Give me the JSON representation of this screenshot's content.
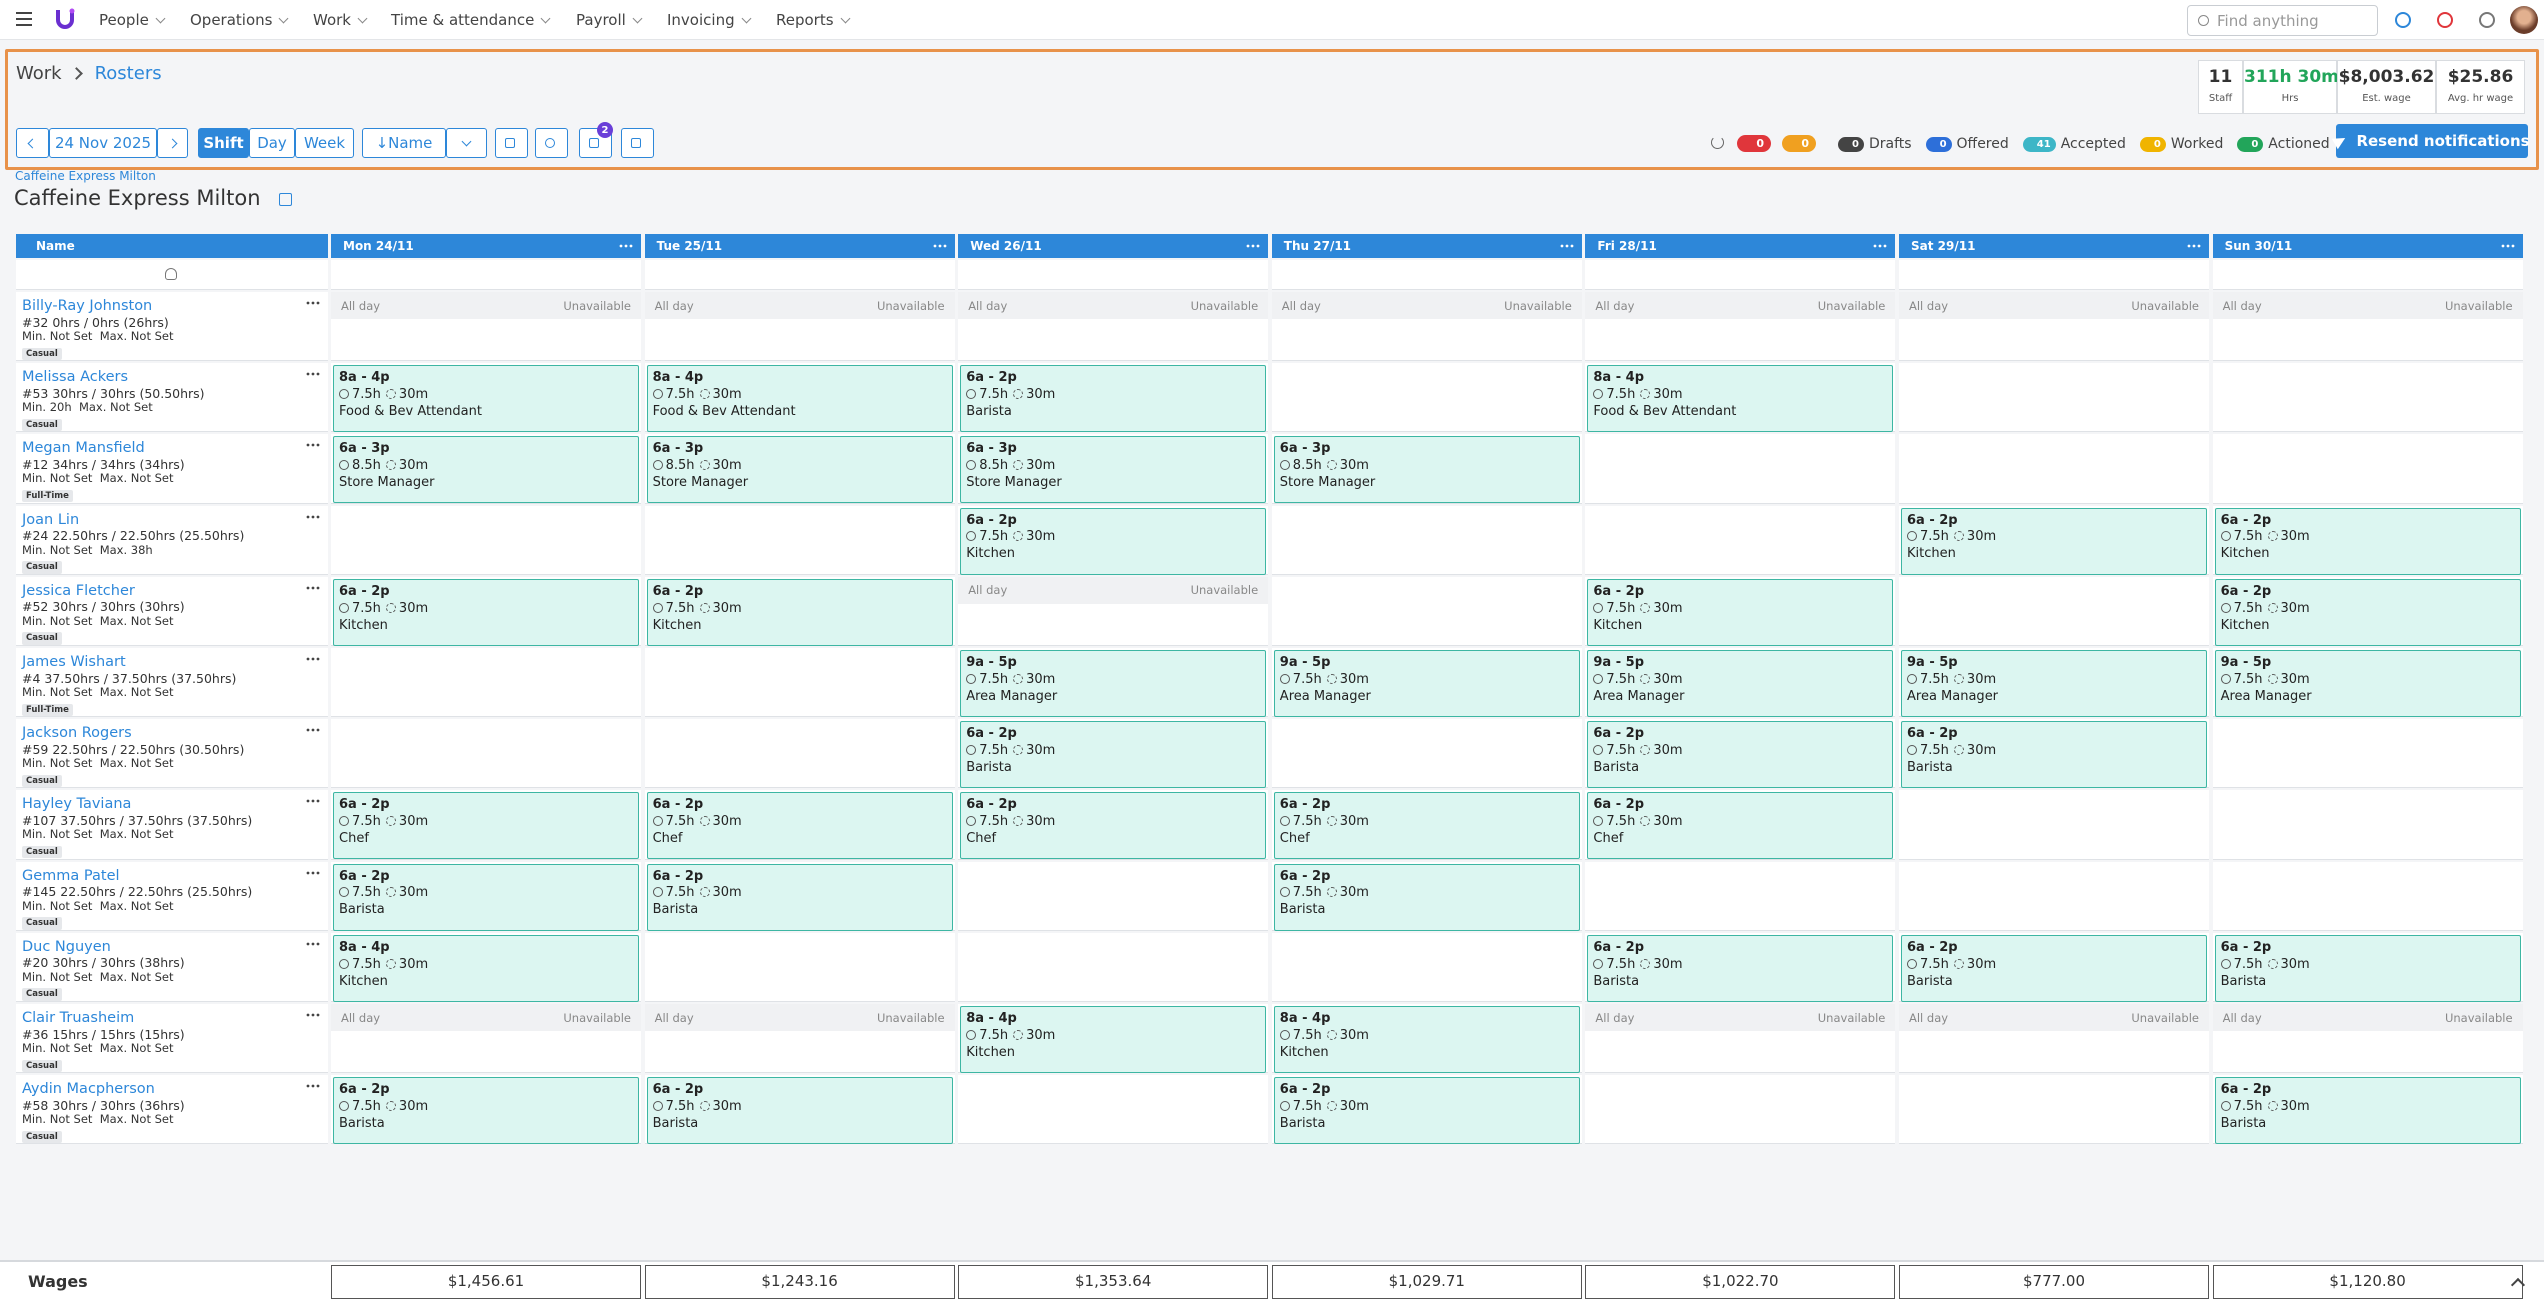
{
  "nav": {
    "items": [
      "People",
      "Operations",
      "Work",
      "Time & attendance",
      "Payroll",
      "Invoicing",
      "Reports"
    ],
    "search_placeholder": "Find anything"
  },
  "header": {
    "breadcrumb": [
      "Work",
      "Rosters"
    ],
    "stats": [
      {
        "value": "11",
        "label": "Staff"
      },
      {
        "value": "311h 30m",
        "label": "Hrs"
      },
      {
        "value": "$8,003.62",
        "label": "Est. wage"
      },
      {
        "value": "$25.86",
        "label": "Avg. hr wage"
      }
    ]
  },
  "toolbar": {
    "date": "24 Nov 2025",
    "views": [
      "Shift",
      "Day",
      "Week"
    ],
    "sort": "↓Name",
    "messages_badge": "2",
    "alerts": [
      "0",
      "0"
    ],
    "statuses": [
      {
        "count": "0",
        "label": "Drafts"
      },
      {
        "count": "0",
        "label": "Offered"
      },
      {
        "count": "41",
        "label": "Accepted"
      },
      {
        "count": "0",
        "label": "Worked"
      },
      {
        "count": "0",
        "label": "Actioned"
      }
    ],
    "resend": "Resend notifications"
  },
  "location": {
    "parent": "Caffeine Express Milton",
    "title": "Caffeine Express Milton"
  },
  "grid": {
    "name_header": "Name",
    "days": [
      "Mon 24/11",
      "Tue 25/11",
      "Wed 26/11",
      "Thu 27/11",
      "Fri 28/11",
      "Sat 29/11",
      "Sun 30/11"
    ],
    "rows": [
      {
        "name": "Billy-Ray Johnston",
        "summary": "#32 0hrs / 0hrs (26hrs)",
        "limits": "Min. Not Set  Max. Not Set",
        "type": "Casual",
        "cells": [
          {
            "left": "All day",
            "right": "Unavailable"
          },
          {
            "left": "All day",
            "right": "Unavailable"
          },
          {
            "left": "All day",
            "right": "Unavailable"
          },
          {
            "left": "All day",
            "right": "Unavailable"
          },
          {
            "left": "All day",
            "right": "Unavailable"
          },
          {
            "left": "All day",
            "right": "Unavailable"
          },
          {
            "left": "All day",
            "right": "Unavailable"
          }
        ]
      },
      {
        "name": "Melissa Ackers",
        "summary": "#53 30hrs / 30hrs (50.50hrs)",
        "limits": "Min. 20h  Max. Not Set",
        "type": "Casual",
        "cells": [
          {
            "time": "8a - 4p",
            "hours": "7.5h",
            "break": "30m",
            "role": "Food & Bev Attendant"
          },
          {
            "time": "8a - 4p",
            "hours": "7.5h",
            "break": "30m",
            "role": "Food & Bev Attendant"
          },
          {
            "time": "6a - 2p",
            "hours": "7.5h",
            "break": "30m",
            "role": "Barista"
          },
          null,
          {
            "time": "8a - 4p",
            "hours": "7.5h",
            "break": "30m",
            "role": "Food & Bev Attendant"
          },
          null,
          null
        ]
      },
      {
        "name": "Megan Mansfield",
        "summary": "#12 34hrs / 34hrs (34hrs)",
        "limits": "Min. Not Set  Max. Not Set",
        "type": "Full-Time",
        "cells": [
          {
            "time": "6a - 3p",
            "hours": "8.5h",
            "break": "30m",
            "role": "Store Manager"
          },
          {
            "time": "6a - 3p",
            "hours": "8.5h",
            "break": "30m",
            "role": "Store Manager"
          },
          {
            "time": "6a - 3p",
            "hours": "8.5h",
            "break": "30m",
            "role": "Store Manager"
          },
          {
            "time": "6a - 3p",
            "hours": "8.5h",
            "break": "30m",
            "role": "Store Manager"
          },
          null,
          null,
          null
        ]
      },
      {
        "name": "Joan Lin",
        "summary": "#24 22.50hrs / 22.50hrs (25.50hrs)",
        "limits": "Min. Not Set  Max. 38h",
        "type": "Casual",
        "cells": [
          null,
          null,
          {
            "time": "6a - 2p",
            "hours": "7.5h",
            "break": "30m",
            "role": "Kitchen"
          },
          null,
          null,
          {
            "time": "6a - 2p",
            "hours": "7.5h",
            "break": "30m",
            "role": "Kitchen"
          },
          {
            "time": "6a - 2p",
            "hours": "7.5h",
            "break": "30m",
            "role": "Kitchen"
          }
        ]
      },
      {
        "name": "Jessica Fletcher",
        "summary": "#52 30hrs / 30hrs (30hrs)",
        "limits": "Min. Not Set  Max. Not Set",
        "type": "Casual",
        "cells": [
          {
            "time": "6a - 2p",
            "hours": "7.5h",
            "break": "30m",
            "role": "Kitchen"
          },
          {
            "time": "6a - 2p",
            "hours": "7.5h",
            "break": "30m",
            "role": "Kitchen"
          },
          {
            "left": "All day",
            "right": "Unavailable"
          },
          null,
          {
            "time": "6a - 2p",
            "hours": "7.5h",
            "break": "30m",
            "role": "Kitchen"
          },
          null,
          {
            "time": "6a - 2p",
            "hours": "7.5h",
            "break": "30m",
            "role": "Kitchen"
          }
        ]
      },
      {
        "name": "James Wishart",
        "summary": "#4 37.50hrs / 37.50hrs (37.50hrs)",
        "limits": "Min. Not Set  Max. Not Set",
        "type": "Full-Time",
        "cells": [
          null,
          null,
          {
            "time": "9a - 5p",
            "hours": "7.5h",
            "break": "30m",
            "role": "Area Manager"
          },
          {
            "time": "9a - 5p",
            "hours": "7.5h",
            "break": "30m",
            "role": "Area Manager"
          },
          {
            "time": "9a - 5p",
            "hours": "7.5h",
            "break": "30m",
            "role": "Area Manager"
          },
          {
            "time": "9a - 5p",
            "hours": "7.5h",
            "break": "30m",
            "role": "Area Manager"
          },
          {
            "time": "9a - 5p",
            "hours": "7.5h",
            "break": "30m",
            "role": "Area Manager"
          }
        ]
      },
      {
        "name": "Jackson Rogers",
        "summary": "#59 22.50hrs / 22.50hrs (30.50hrs)",
        "limits": "Min. Not Set  Max. Not Set",
        "type": "Casual",
        "cells": [
          null,
          null,
          {
            "time": "6a - 2p",
            "hours": "7.5h",
            "break": "30m",
            "role": "Barista"
          },
          null,
          {
            "time": "6a - 2p",
            "hours": "7.5h",
            "break": "30m",
            "role": "Barista"
          },
          {
            "time": "6a - 2p",
            "hours": "7.5h",
            "break": "30m",
            "role": "Barista"
          },
          null
        ]
      },
      {
        "name": "Hayley Taviana",
        "summary": "#107 37.50hrs / 37.50hrs (37.50hrs)",
        "limits": "Min. Not Set  Max. Not Set",
        "type": "Casual",
        "cells": [
          {
            "time": "6a - 2p",
            "hours": "7.5h",
            "break": "30m",
            "role": "Chef"
          },
          {
            "time": "6a - 2p",
            "hours": "7.5h",
            "break": "30m",
            "role": "Chef"
          },
          {
            "time": "6a - 2p",
            "hours": "7.5h",
            "break": "30m",
            "role": "Chef"
          },
          {
            "time": "6a - 2p",
            "hours": "7.5h",
            "break": "30m",
            "role": "Chef"
          },
          {
            "time": "6a - 2p",
            "hours": "7.5h",
            "break": "30m",
            "role": "Chef"
          },
          null,
          null
        ]
      },
      {
        "name": "Gemma Patel",
        "summary": "#145 22.50hrs / 22.50hrs (25.50hrs)",
        "limits": "Min. Not Set  Max. Not Set",
        "type": "Casual",
        "cells": [
          {
            "time": "6a - 2p",
            "hours": "7.5h",
            "break": "30m",
            "role": "Barista"
          },
          {
            "time": "6a - 2p",
            "hours": "7.5h",
            "break": "30m",
            "role": "Barista"
          },
          null,
          {
            "time": "6a - 2p",
            "hours": "7.5h",
            "break": "30m",
            "role": "Barista"
          },
          null,
          null,
          null
        ]
      },
      {
        "name": "Duc Nguyen",
        "summary": "#20 30hrs / 30hrs (38hrs)",
        "limits": "Min. Not Set  Max. Not Set",
        "type": "Casual",
        "cells": [
          {
            "time": "8a - 4p",
            "hours": "7.5h",
            "break": "30m",
            "role": "Kitchen"
          },
          null,
          null,
          null,
          {
            "time": "6a - 2p",
            "hours": "7.5h",
            "break": "30m",
            "role": "Barista"
          },
          {
            "time": "6a - 2p",
            "hours": "7.5h",
            "break": "30m",
            "role": "Barista"
          },
          {
            "time": "6a - 2p",
            "hours": "7.5h",
            "break": "30m",
            "role": "Barista"
          }
        ]
      },
      {
        "name": "Clair Truasheim",
        "summary": "#36 15hrs / 15hrs (15hrs)",
        "limits": "Min. Not Set  Max. Not Set",
        "type": "Casual",
        "cells": [
          {
            "left": "All day",
            "right": "Unavailable"
          },
          {
            "left": "All day",
            "right": "Unavailable"
          },
          {
            "time": "8a - 4p",
            "hours": "7.5h",
            "break": "30m",
            "role": "Kitchen"
          },
          {
            "time": "8a - 4p",
            "hours": "7.5h",
            "break": "30m",
            "role": "Kitchen"
          },
          {
            "left": "All day",
            "right": "Unavailable"
          },
          {
            "left": "All day",
            "right": "Unavailable"
          },
          {
            "left": "All day",
            "right": "Unavailable"
          }
        ]
      },
      {
        "name": "Aydin Macpherson",
        "summary": "#58 30hrs / 30hrs (36hrs)",
        "limits": "Min. Not Set  Max. Not Set",
        "type": "Casual",
        "cells": [
          {
            "time": "6a - 2p",
            "hours": "7.5h",
            "break": "30m",
            "role": "Barista"
          },
          {
            "time": "6a - 2p",
            "hours": "7.5h",
            "break": "30m",
            "role": "Barista"
          },
          null,
          {
            "time": "6a - 2p",
            "hours": "7.5h",
            "break": "30m",
            "role": "Barista"
          },
          null,
          null,
          {
            "time": "6a - 2p",
            "hours": "7.5h",
            "break": "30m",
            "role": "Barista"
          }
        ]
      }
    ]
  },
  "wages": {
    "label": "Wages",
    "values": [
      "$1,456.61",
      "$1,243.16",
      "$1,353.64",
      "$1,029.71",
      "$1,022.70",
      "$777.00",
      "$1,120.80"
    ]
  }
}
